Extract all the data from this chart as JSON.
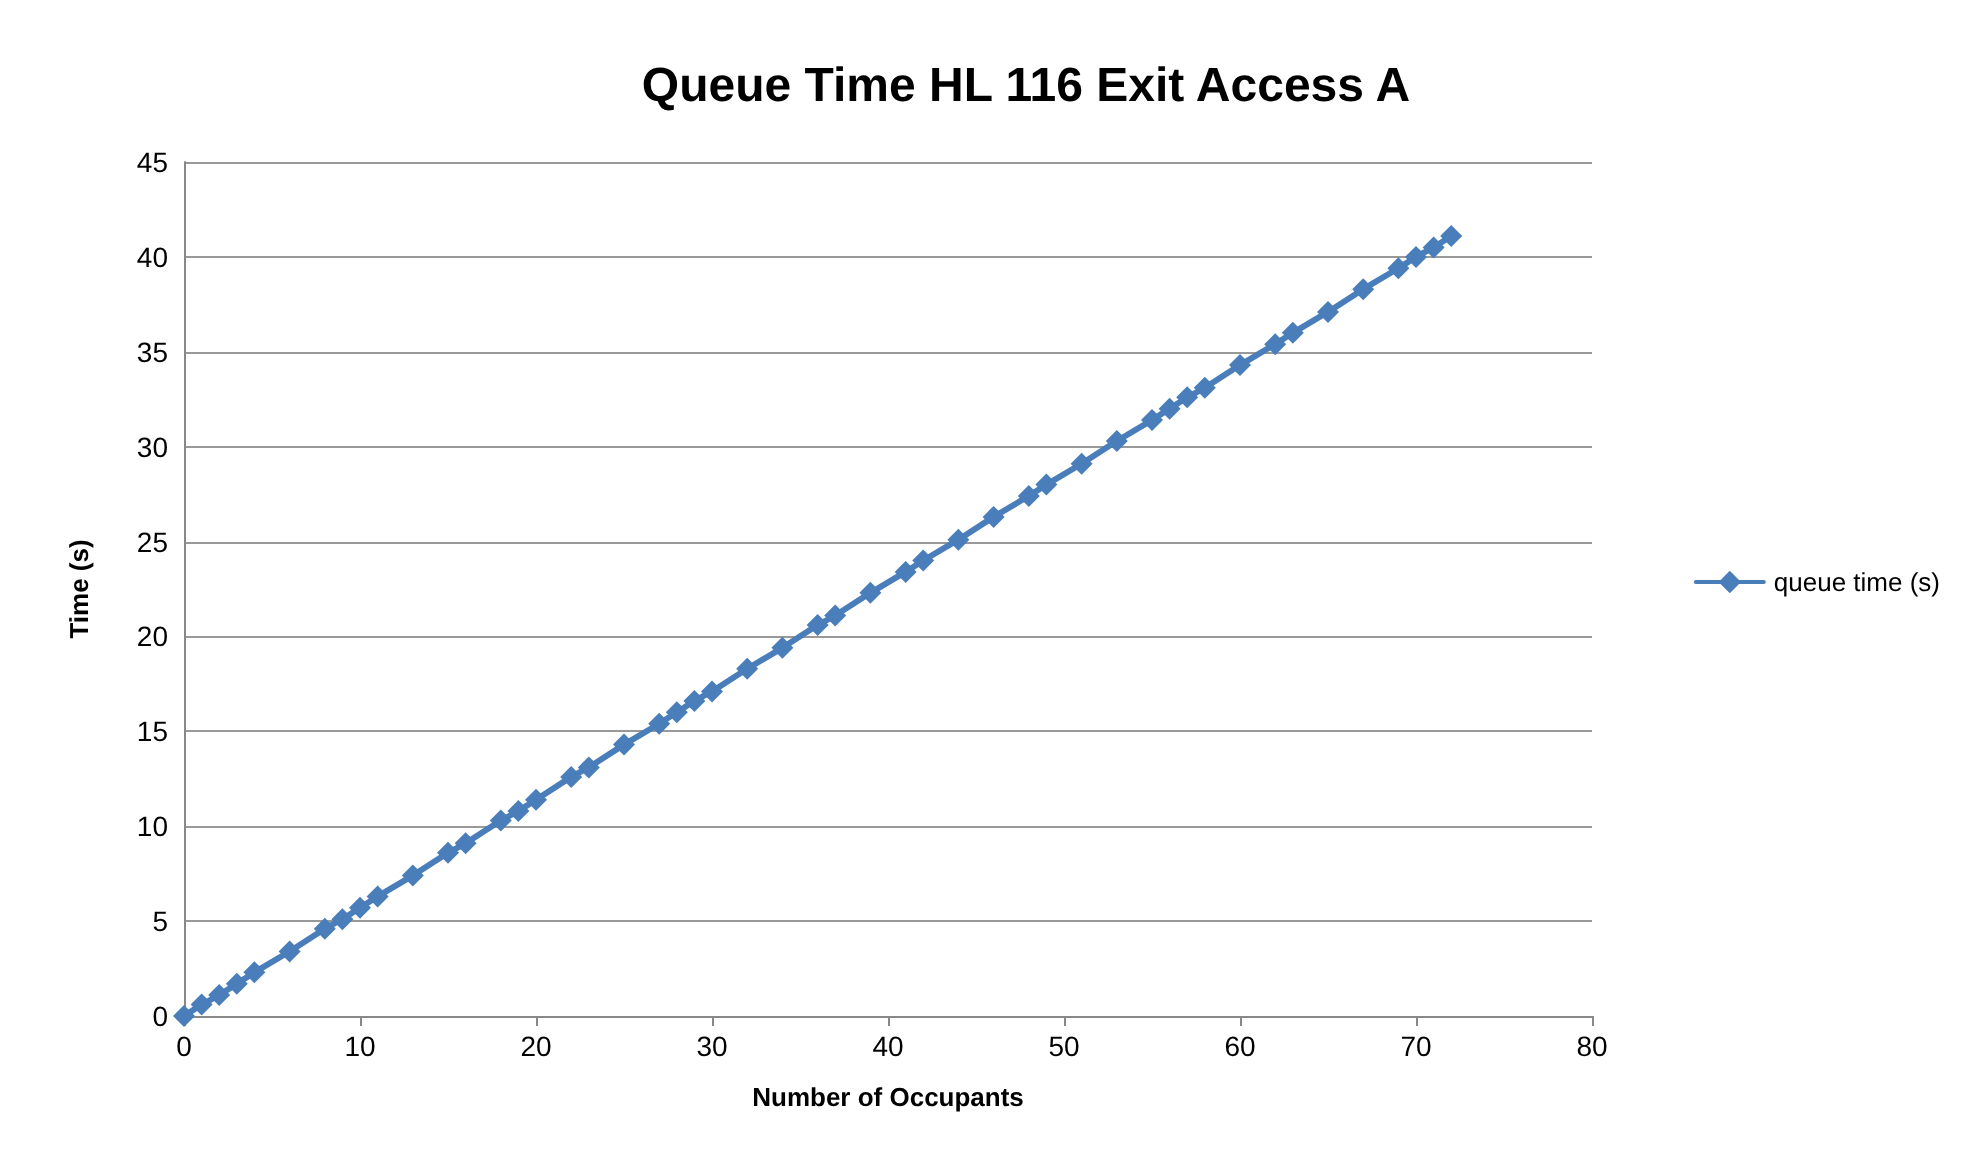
{
  "chart_data": {
    "type": "line",
    "title": "Queue Time HL 116 Exit Access A",
    "xlabel": "Number of Occupants",
    "ylabel": "Time (s)",
    "x": [
      0,
      1,
      2,
      3,
      4,
      6,
      8,
      9,
      10,
      11,
      13,
      15,
      16,
      18,
      19,
      20,
      22,
      23,
      25,
      27,
      28,
      29,
      30,
      32,
      34,
      36,
      37,
      39,
      41,
      42,
      44,
      46,
      48,
      49,
      51,
      53,
      55,
      56,
      57,
      58,
      60,
      62,
      63,
      65,
      67,
      69,
      70,
      71,
      72
    ],
    "series": [
      {
        "name": "queue time (s)",
        "color": "#4a7ebb",
        "values": [
          0,
          0.6,
          1.1,
          1.7,
          2.3,
          3.4,
          4.6,
          5.1,
          5.7,
          6.3,
          7.4,
          8.6,
          9.1,
          10.3,
          10.8,
          11.4,
          12.6,
          13.1,
          14.3,
          15.4,
          16,
          16.6,
          17.1,
          18.3,
          19.4,
          20.6,
          21.1,
          22.3,
          23.4,
          24,
          25.1,
          26.3,
          27.4,
          28,
          29.1,
          30.3,
          31.4,
          32,
          32.6,
          33.1,
          34.3,
          35.4,
          36,
          37.1,
          38.3,
          39.4,
          40,
          40.5,
          41.1
        ]
      }
    ],
    "xlim": [
      0,
      80
    ],
    "xticks": [
      0,
      10,
      20,
      30,
      40,
      50,
      60,
      70,
      80
    ],
    "ylim": [
      0,
      45
    ],
    "yticks": [
      0,
      5,
      10,
      15,
      20,
      25,
      30,
      35,
      40,
      45
    ],
    "grid": "y",
    "legend": "right",
    "marker": "diamond",
    "line_style": "solid"
  }
}
